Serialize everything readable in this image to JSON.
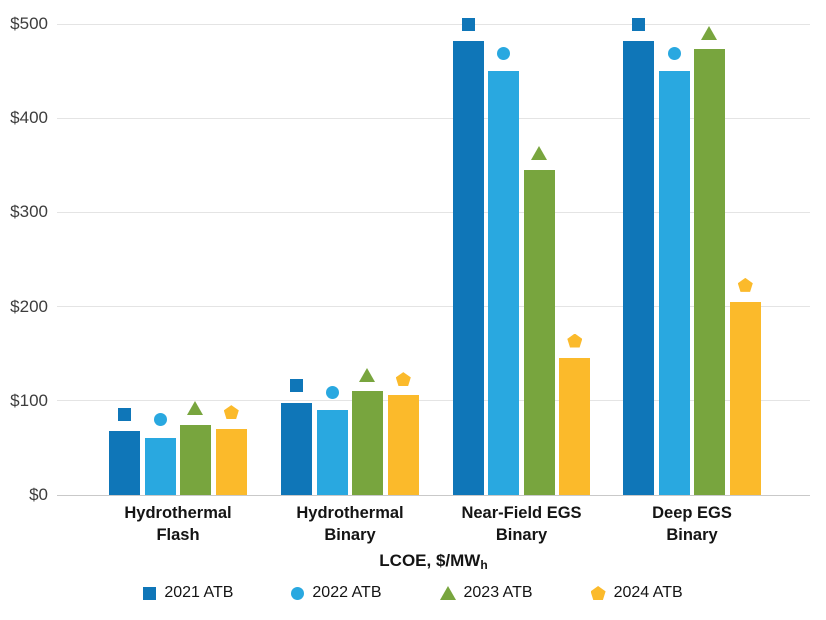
{
  "chart_data": {
    "type": "bar",
    "title": "",
    "xlabel_main": "LCOE, $/MW",
    "xlabel_sub": "h",
    "categories": [
      "Hydrothermal\nFlash",
      "Hydrothermal\nBinary",
      "Near-Field EGS\nBinary",
      "Deep EGS\nBinary"
    ],
    "series": [
      {
        "name": "2021 ATB",
        "marker": "square",
        "color": "#0F76B8",
        "bar_values": [
          68,
          98,
          482,
          482
        ],
        "marker_values": [
          85,
          116,
          500,
          500
        ]
      },
      {
        "name": "2022 ATB",
        "marker": "circle",
        "color": "#29A8E0",
        "bar_values": [
          61,
          90,
          450,
          450
        ],
        "marker_values": [
          80,
          109,
          469,
          469
        ]
      },
      {
        "name": "2023 ATB",
        "marker": "triangle",
        "color": "#78A53E",
        "bar_values": [
          74,
          110,
          345,
          473
        ],
        "marker_values": [
          92,
          127,
          363,
          491
        ]
      },
      {
        "name": "2024 ATB",
        "marker": "pentagon",
        "color": "#FBBA2B",
        "bar_values": [
          70,
          106,
          145,
          205
        ],
        "marker_values": [
          88,
          123,
          164,
          223
        ]
      }
    ],
    "ylim": [
      0,
      500
    ],
    "ytick_step": 100,
    "ytick_labels": [
      "$0",
      "$100",
      "$200",
      "$300",
      "$400",
      "$500"
    ],
    "grid": "horizontal",
    "legend_position": "bottom",
    "grid_color": "#E4E4E4",
    "axis_line_color": "#C9C9C9",
    "tick_label_color": "#3D3D3D",
    "text_color": "#141414"
  }
}
